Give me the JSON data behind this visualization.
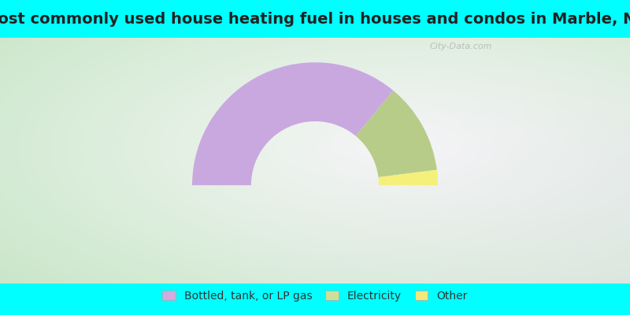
{
  "title": "Most commonly used house heating fuel in houses and condos in Marble, NC",
  "categories": [
    "Bottled, tank, or LP gas",
    "Electricity",
    "Other"
  ],
  "values": [
    72,
    24,
    4
  ],
  "colors": [
    "#c9a8e0",
    "#b8cc8a",
    "#f5f07a"
  ],
  "legend_colors": [
    "#d4aadf",
    "#cce09a",
    "#f5e87a"
  ],
  "bg_outer": "#00ffff",
  "title_color": "#222222",
  "title_fontsize": 14,
  "outer_r": 1.0,
  "inner_r": 0.52
}
